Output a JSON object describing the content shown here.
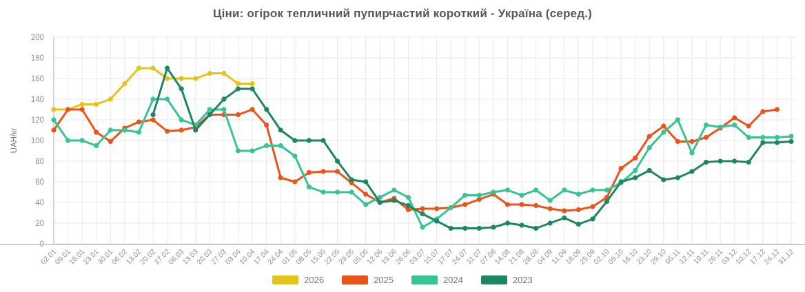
{
  "title": "Ціни: огірок тепличний пупирчастий короткий - Україна (серед.)",
  "chart_data": {
    "type": "line",
    "title": "Ціни: огірок тепличний пупирчастий короткий - Україна (серед.)",
    "xlabel": "",
    "ylabel": "UAH/кг",
    "ylim": [
      0,
      200
    ],
    "ytick_step": 20,
    "grid": true,
    "legend_position": "bottom",
    "categories": [
      "02.01",
      "09.01",
      "16.01",
      "23.01",
      "30.01",
      "06.02",
      "13.02",
      "20.02",
      "27.02",
      "06.03",
      "13.03",
      "20.03",
      "27.03",
      "03.04",
      "10.04",
      "17.04",
      "24.04",
      "01.05",
      "08.05",
      "15.05",
      "22.05",
      "29.05",
      "05.06",
      "12.06",
      "19.06",
      "26.06",
      "03.07",
      "10.07",
      "17.07",
      "24.07",
      "31.07",
      "07.08",
      "14.08",
      "21.08",
      "28.08",
      "04.09",
      "11.09",
      "18.09",
      "25.09",
      "02.10",
      "09.10",
      "16.10",
      "23.10",
      "29.10",
      "05.11",
      "12.11",
      "19.11",
      "26.11",
      "03.12",
      "10.12",
      "17.12",
      "24.12",
      "31.12"
    ],
    "series": [
      {
        "name": "2026",
        "color": "#e5c31d",
        "start_index": 0,
        "values": [
          130,
          130,
          135,
          135,
          140,
          155,
          170,
          170,
          160,
          160,
          160,
          165,
          165,
          155,
          155
        ]
      },
      {
        "name": "2025",
        "color": "#e8541a",
        "start_index": 0,
        "values": [
          110,
          130,
          130,
          108,
          99,
          112,
          118,
          120,
          109,
          110,
          113,
          125,
          125,
          125,
          130,
          115,
          64,
          60,
          69,
          70,
          70,
          59,
          48,
          40,
          44,
          33,
          34,
          34,
          35,
          38,
          43,
          48,
          38,
          38,
          37,
          34,
          32,
          33,
          36,
          45,
          73,
          83,
          104,
          114,
          99,
          99,
          103,
          112,
          122,
          114,
          128,
          130
        ]
      },
      {
        "name": "2024",
        "color": "#38c492",
        "start_index": 0,
        "values": [
          120,
          100,
          100,
          95,
          110,
          110,
          108,
          140,
          140,
          120,
          115,
          130,
          130,
          90,
          90,
          95,
          95,
          85,
          55,
          50,
          50,
          50,
          38,
          45,
          52,
          45,
          16,
          24,
          35,
          47,
          47,
          50,
          52,
          47,
          52,
          42,
          52,
          48,
          52,
          52,
          59,
          71,
          93,
          108,
          120,
          88,
          115,
          113,
          115,
          103,
          103,
          103,
          104
        ]
      },
      {
        "name": "2023",
        "color": "#1f8662",
        "start_index": 7,
        "values": [
          125,
          170,
          150,
          110,
          125,
          140,
          150,
          150,
          130,
          110,
          100,
          100,
          100,
          80,
          62,
          60,
          40,
          42,
          37,
          29,
          22,
          15,
          15,
          15,
          16,
          20,
          18,
          15,
          20,
          25,
          19,
          24,
          41,
          60,
          64,
          71,
          62,
          64,
          70,
          79,
          80,
          80,
          79,
          98,
          98,
          99
        ]
      }
    ],
    "yticks": [
      0,
      20,
      40,
      60,
      80,
      100,
      120,
      140,
      160,
      180,
      200
    ]
  },
  "colors": {
    "title_text": "#56575b",
    "tick_text": "#8f9092",
    "grid_line": "#e9e9e9",
    "axis_line": "#c9cacb",
    "background": "#ffffff"
  }
}
